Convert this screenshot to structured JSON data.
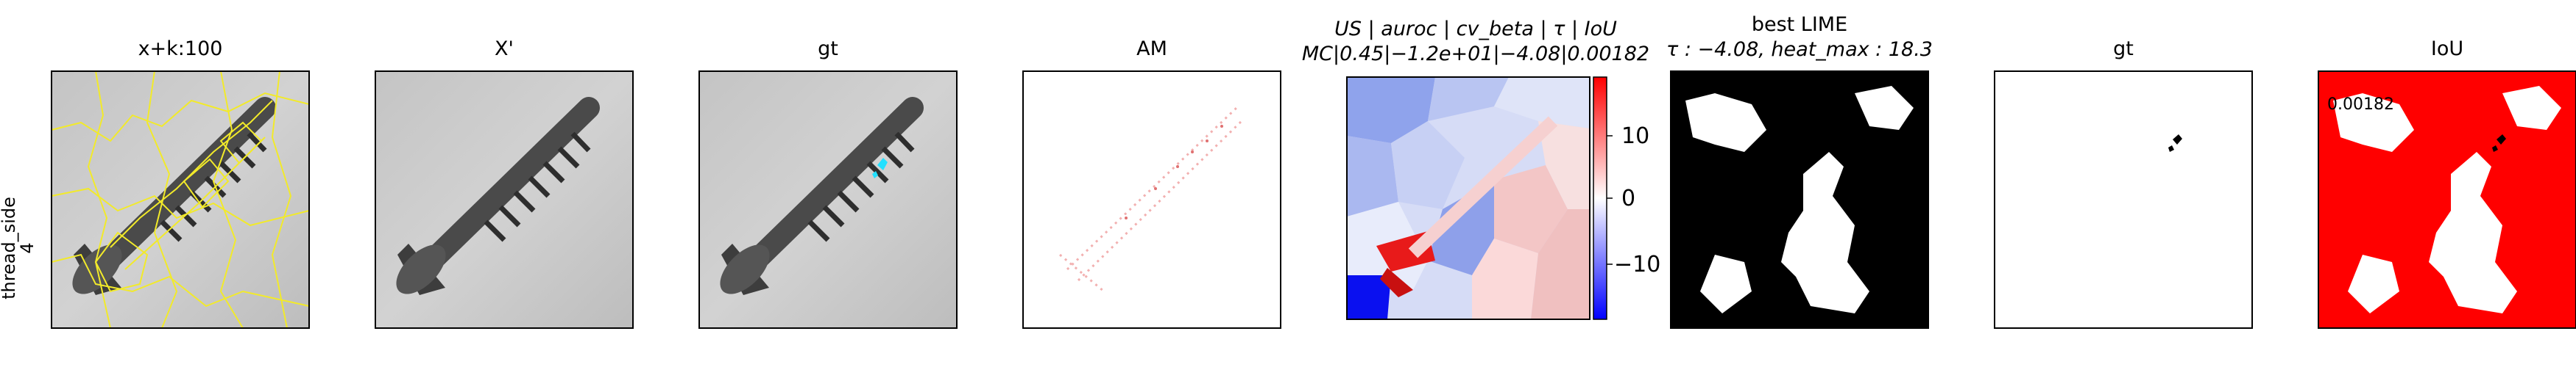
{
  "row_label": {
    "line1": "thread_side",
    "line2": "4"
  },
  "panels": [
    {
      "id": "p1",
      "title": "x+k:100"
    },
    {
      "id": "p2",
      "title": "X'"
    },
    {
      "id": "p3",
      "title": "gt"
    },
    {
      "id": "p4",
      "title": "AM"
    },
    {
      "id": "p5",
      "title_line1": "US | auroc | cv_beta | τ | IoU",
      "title_line2": "MC|0.45|−1.2e+01|−4.08|0.00182"
    },
    {
      "id": "p6",
      "title_line1": "best LIME",
      "title_line2": "τ : −4.08, heat_max : 18.3"
    },
    {
      "id": "p7",
      "title": "gt"
    },
    {
      "id": "p8",
      "title": "IoU",
      "annotation": "0.00182"
    }
  ],
  "colorbar": {
    "ticks": [
      "10",
      "0",
      "−10"
    ],
    "colors": {
      "high": "#ff0000",
      "mid": "#ffffff",
      "low": "#0000ff"
    }
  },
  "colors": {
    "overlay": "#f2ea2a",
    "gt_mark": "#22e0ff",
    "iou_fill": "#ff0000"
  }
}
